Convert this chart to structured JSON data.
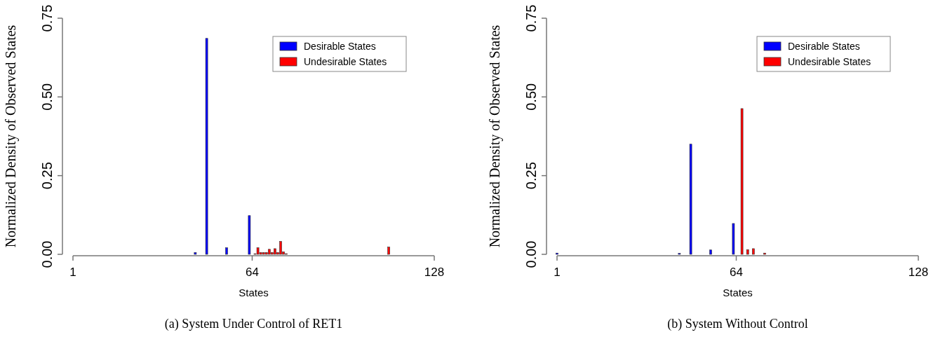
{
  "chart_data": [
    {
      "type": "bar",
      "title": "(a) System Under Control of RET1",
      "xlabel": "States",
      "ylabel": "Normalized Density of Observed States",
      "xlim": [
        1,
        128
      ],
      "xticks": [
        1,
        64,
        128
      ],
      "ylim": [
        0,
        0.75
      ],
      "yticks": [
        {
          "value": 0,
          "label": "0.00"
        },
        {
          "value": 0.25,
          "label": "0.25"
        },
        {
          "value": 0.5,
          "label": "0.50"
        },
        {
          "value": 0.75,
          "label": "0.75"
        }
      ],
      "legend": "top right",
      "series": [
        {
          "name": "Desirable States",
          "color": "#0000ff",
          "x": [
            44,
            48,
            55,
            63
          ],
          "values": [
            0.006,
            0.686,
            0.021,
            0.123
          ]
        },
        {
          "name": "Undesirable States",
          "color": "#ff0000",
          "x": [
            65,
            66,
            67,
            68,
            69,
            70,
            71,
            72,
            73,
            74,
            75,
            76,
            112
          ],
          "values": [
            0.002,
            0.021,
            0.006,
            0.006,
            0.006,
            0.016,
            0.006,
            0.018,
            0.006,
            0.041,
            0.008,
            0.002,
            0.023
          ]
        }
      ]
    },
    {
      "type": "bar",
      "title": "(b) System Without Control",
      "xlabel": "States",
      "ylabel": "Normalized Density of Observed States",
      "xlim": [
        1,
        128
      ],
      "xticks": [
        1,
        64,
        128
      ],
      "ylim": [
        0,
        0.75
      ],
      "yticks": [
        {
          "value": 0,
          "label": "0.00"
        },
        {
          "value": 0.25,
          "label": "0.25"
        },
        {
          "value": 0.5,
          "label": "0.50"
        },
        {
          "value": 0.75,
          "label": "0.75"
        }
      ],
      "legend": "top right",
      "series": [
        {
          "name": "Desirable States",
          "color": "#0000ff",
          "x": [
            1,
            44,
            48,
            55,
            63
          ],
          "values": [
            0.004,
            0.003,
            0.35,
            0.014,
            0.098
          ]
        },
        {
          "name": "Undesirable States",
          "color": "#ff0000",
          "x": [
            66,
            68,
            70,
            74
          ],
          "values": [
            0.463,
            0.015,
            0.018,
            0.004
          ]
        }
      ]
    }
  ]
}
